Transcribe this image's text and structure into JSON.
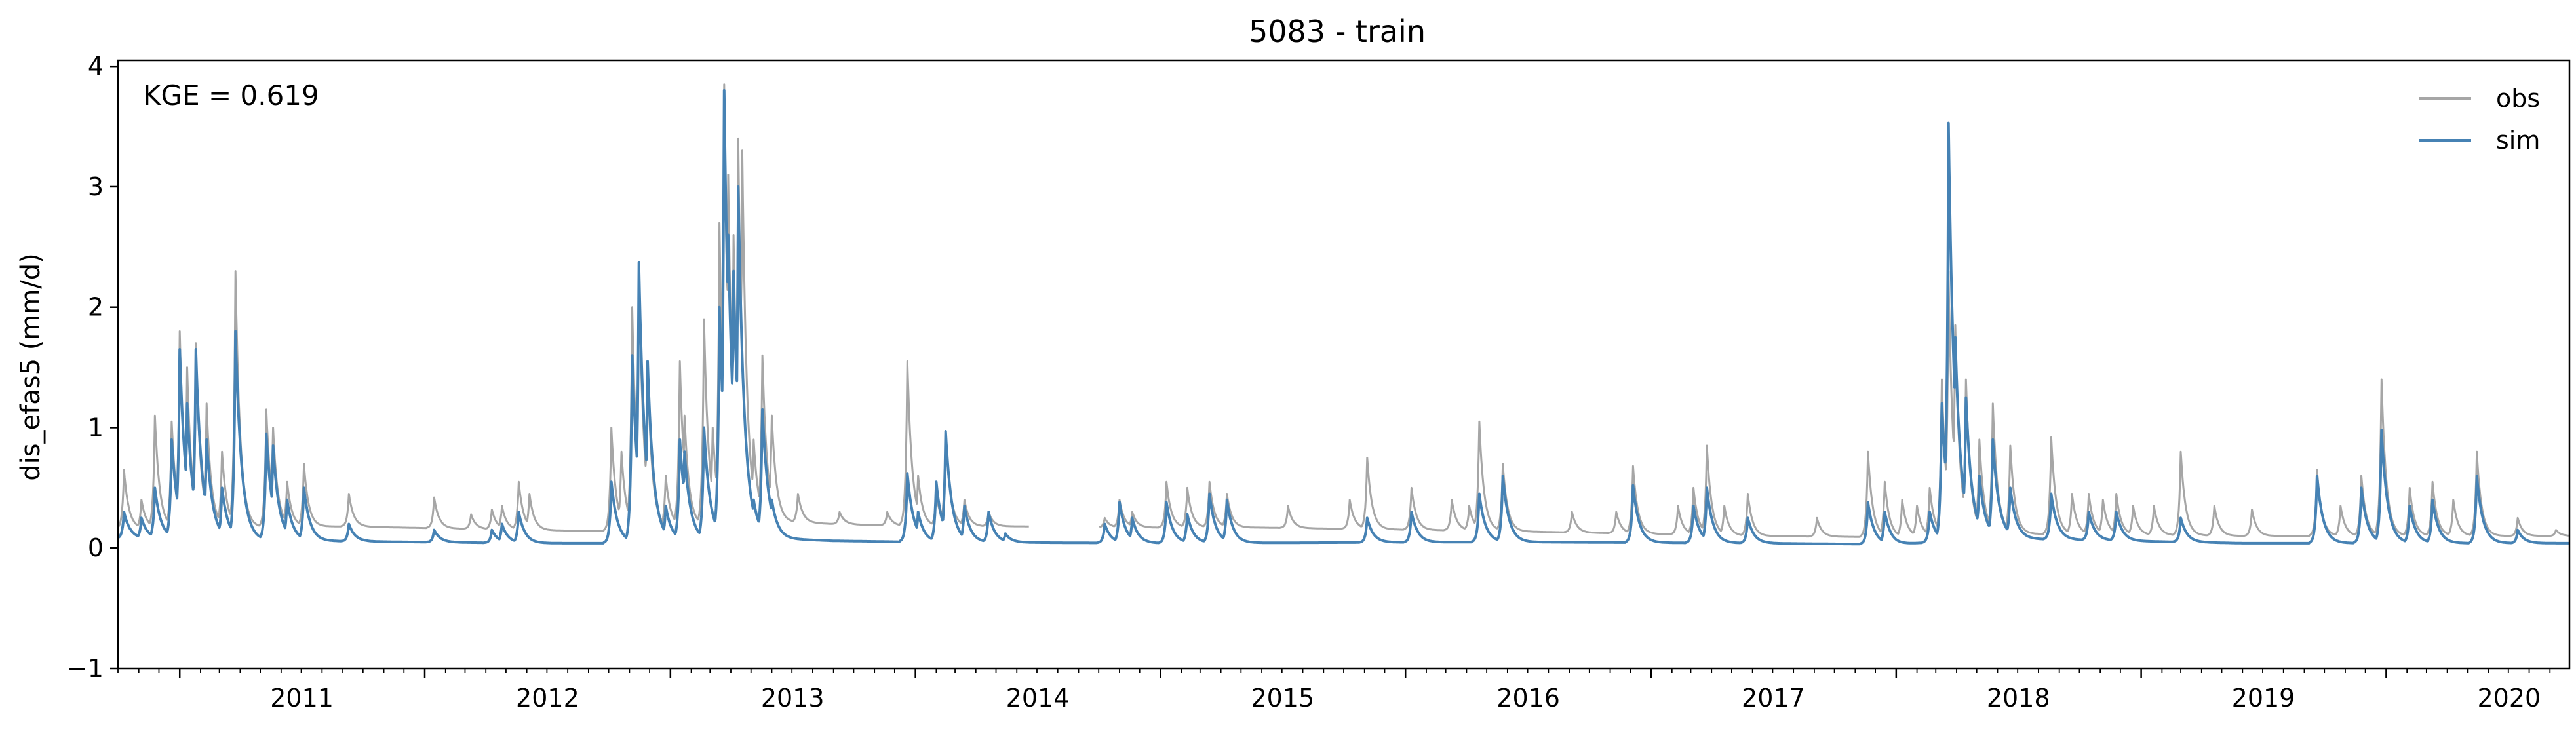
{
  "chart_data": {
    "type": "line",
    "title": "5083 - train",
    "xlabel": "",
    "ylabel": "dis_efas5 (mm/d)",
    "annotation": "KGE = 0.619",
    "x_range": [
      "2010-10-01",
      "2020-09-30"
    ],
    "ylim": [
      -1,
      4.05
    ],
    "y_ticks": [
      -1,
      0,
      1,
      2,
      3,
      4
    ],
    "x_ticks": [
      "2011",
      "2012",
      "2013",
      "2014",
      "2015",
      "2016",
      "2017",
      "2018",
      "2019",
      "2020"
    ],
    "grid": false,
    "legend_position": "top-right",
    "colors": {
      "obs": "#a6a6a6",
      "sim": "#4682b4"
    },
    "series": [
      {
        "name": "obs",
        "baseline": [
          [
            "2010-10-01",
            0.16
          ],
          [
            "2011-09-01",
            0.18
          ],
          [
            "2012-06-01",
            0.15
          ],
          [
            "2012-10-01",
            0.14
          ],
          [
            "2013-06-01",
            0.22
          ],
          [
            "2013-09-01",
            0.2
          ],
          [
            "2014-01-01",
            0.18
          ],
          [
            "2014-06-15",
            0.18
          ],
          [
            "2014-10-01",
            0.17
          ],
          [
            "2015-06-01",
            0.17
          ],
          [
            "2016-06-01",
            0.14
          ],
          [
            "2017-06-01",
            0.1
          ],
          [
            "2018-01-01",
            0.09
          ],
          [
            "2018-06-01",
            0.12
          ],
          [
            "2019-06-01",
            0.1
          ],
          [
            "2020-09-30",
            0.1
          ]
        ],
        "gaps": [
          [
            "2014-06-20",
            "2014-10-01"
          ]
        ],
        "peaks": [
          [
            "2010-10-10",
            0.65
          ],
          [
            "2010-11-05",
            0.4
          ],
          [
            "2010-11-25",
            1.1
          ],
          [
            "2010-12-20",
            1.05
          ],
          [
            "2011-01-01",
            1.8
          ],
          [
            "2011-01-12",
            1.5
          ],
          [
            "2011-01-25",
            1.7
          ],
          [
            "2011-02-10",
            1.2
          ],
          [
            "2011-03-05",
            0.8
          ],
          [
            "2011-03-25",
            2.3
          ],
          [
            "2011-04-15",
            0.25
          ],
          [
            "2011-05-10",
            1.15
          ],
          [
            "2011-05-20",
            1.0
          ],
          [
            "2011-06-10",
            0.55
          ],
          [
            "2011-07-05",
            0.7
          ],
          [
            "2011-09-10",
            0.45
          ],
          [
            "2012-01-15",
            0.42
          ],
          [
            "2012-03-10",
            0.28
          ],
          [
            "2012-04-10",
            0.32
          ],
          [
            "2012-04-25",
            0.35
          ],
          [
            "2012-05-20",
            0.55
          ],
          [
            "2012-06-05",
            0.45
          ],
          [
            "2012-10-05",
            1.0
          ],
          [
            "2012-10-20",
            0.8
          ],
          [
            "2012-11-05",
            2.0
          ],
          [
            "2012-11-15",
            2.35
          ],
          [
            "2012-11-28",
            1.5
          ],
          [
            "2012-12-25",
            0.6
          ],
          [
            "2013-01-15",
            1.55
          ],
          [
            "2013-01-22",
            1.1
          ],
          [
            "2013-02-20",
            1.9
          ],
          [
            "2013-03-05",
            1.0
          ],
          [
            "2013-03-15",
            2.7
          ],
          [
            "2013-03-22",
            3.85
          ],
          [
            "2013-03-28",
            3.1
          ],
          [
            "2013-04-05",
            2.6
          ],
          [
            "2013-04-12",
            3.4
          ],
          [
            "2013-04-18",
            3.3
          ],
          [
            "2013-05-05",
            0.9
          ],
          [
            "2013-05-18",
            1.6
          ],
          [
            "2013-06-01",
            1.1
          ],
          [
            "2013-07-10",
            0.45
          ],
          [
            "2013-09-10",
            0.3
          ],
          [
            "2013-11-20",
            0.3
          ],
          [
            "2013-12-20",
            1.55
          ],
          [
            "2014-01-05",
            0.6
          ],
          [
            "2014-02-01",
            0.45
          ],
          [
            "2014-02-15",
            0.95
          ],
          [
            "2014-03-15",
            0.4
          ],
          [
            "2014-04-20",
            0.3
          ],
          [
            "2014-10-10",
            0.25
          ],
          [
            "2014-11-01",
            0.4
          ],
          [
            "2014-11-20",
            0.3
          ],
          [
            "2015-01-10",
            0.55
          ],
          [
            "2015-02-10",
            0.5
          ],
          [
            "2015-03-15",
            0.55
          ],
          [
            "2015-04-10",
            0.45
          ],
          [
            "2015-07-10",
            0.35
          ],
          [
            "2015-10-10",
            0.4
          ],
          [
            "2015-11-05",
            0.75
          ],
          [
            "2016-01-10",
            0.5
          ],
          [
            "2016-03-10",
            0.4
          ],
          [
            "2016-04-05",
            0.35
          ],
          [
            "2016-04-20",
            1.05
          ],
          [
            "2016-05-25",
            0.7
          ],
          [
            "2016-09-05",
            0.3
          ],
          [
            "2016-11-10",
            0.3
          ],
          [
            "2016-12-05",
            0.68
          ],
          [
            "2017-02-10",
            0.35
          ],
          [
            "2017-03-05",
            0.5
          ],
          [
            "2017-03-25",
            0.85
          ],
          [
            "2017-04-20",
            0.35
          ],
          [
            "2017-05-25",
            0.45
          ],
          [
            "2017-09-05",
            0.25
          ],
          [
            "2017-11-20",
            0.8
          ],
          [
            "2017-12-15",
            0.55
          ],
          [
            "2018-01-10",
            0.4
          ],
          [
            "2018-02-01",
            0.35
          ],
          [
            "2018-02-20",
            0.5
          ],
          [
            "2018-03-10",
            1.4
          ],
          [
            "2018-03-20",
            2.3
          ],
          [
            "2018-03-30",
            1.85
          ],
          [
            "2018-04-15",
            1.4
          ],
          [
            "2018-05-05",
            0.9
          ],
          [
            "2018-05-25",
            1.2
          ],
          [
            "2018-06-20",
            0.85
          ],
          [
            "2018-08-20",
            0.92
          ],
          [
            "2018-09-20",
            0.45
          ],
          [
            "2018-10-15",
            0.45
          ],
          [
            "2018-11-05",
            0.4
          ],
          [
            "2018-11-25",
            0.45
          ],
          [
            "2018-12-20",
            0.35
          ],
          [
            "2019-01-20",
            0.35
          ],
          [
            "2019-03-01",
            0.8
          ],
          [
            "2019-04-20",
            0.35
          ],
          [
            "2019-06-15",
            0.32
          ],
          [
            "2019-09-20",
            0.65
          ],
          [
            "2019-10-25",
            0.35
          ],
          [
            "2019-11-25",
            0.6
          ],
          [
            "2019-12-25",
            1.4
          ],
          [
            "2020-02-05",
            0.5
          ],
          [
            "2020-03-10",
            0.55
          ],
          [
            "2020-04-10",
            0.4
          ],
          [
            "2020-05-15",
            0.8
          ],
          [
            "2020-07-15",
            0.25
          ],
          [
            "2020-09-10",
            0.15
          ]
        ]
      },
      {
        "name": "sim",
        "baseline": [
          [
            "2010-10-01",
            0.08
          ],
          [
            "2011-07-01",
            0.06
          ],
          [
            "2012-06-01",
            0.04
          ],
          [
            "2012-10-01",
            0.04
          ],
          [
            "2013-06-01",
            0.08
          ],
          [
            "2013-09-01",
            0.06
          ],
          [
            "2014-01-01",
            0.05
          ],
          [
            "2015-01-01",
            0.04
          ],
          [
            "2016-06-01",
            0.05
          ],
          [
            "2017-06-01",
            0.04
          ],
          [
            "2018-01-01",
            0.03
          ],
          [
            "2018-06-01",
            0.08
          ],
          [
            "2019-06-01",
            0.04
          ],
          [
            "2020-09-30",
            0.04
          ]
        ],
        "gaps": [],
        "peaks": [
          [
            "2010-10-10",
            0.3
          ],
          [
            "2010-11-05",
            0.25
          ],
          [
            "2010-11-25",
            0.5
          ],
          [
            "2010-12-20",
            0.9
          ],
          [
            "2011-01-01",
            1.65
          ],
          [
            "2011-01-12",
            1.2
          ],
          [
            "2011-01-25",
            1.65
          ],
          [
            "2011-02-10",
            0.9
          ],
          [
            "2011-03-05",
            0.5
          ],
          [
            "2011-03-25",
            1.8
          ],
          [
            "2011-05-10",
            0.95
          ],
          [
            "2011-05-20",
            0.85
          ],
          [
            "2011-06-10",
            0.4
          ],
          [
            "2011-07-05",
            0.5
          ],
          [
            "2011-09-10",
            0.2
          ],
          [
            "2012-01-15",
            0.15
          ],
          [
            "2012-04-10",
            0.15
          ],
          [
            "2012-04-25",
            0.2
          ],
          [
            "2012-05-20",
            0.3
          ],
          [
            "2012-10-05",
            0.55
          ],
          [
            "2012-11-05",
            1.6
          ],
          [
            "2012-11-15",
            2.37
          ],
          [
            "2012-11-28",
            1.55
          ],
          [
            "2012-12-25",
            0.35
          ],
          [
            "2013-01-15",
            0.9
          ],
          [
            "2013-01-22",
            0.8
          ],
          [
            "2013-02-20",
            1.0
          ],
          [
            "2013-03-15",
            2.0
          ],
          [
            "2013-03-22",
            3.8
          ],
          [
            "2013-03-28",
            2.6
          ],
          [
            "2013-04-05",
            2.3
          ],
          [
            "2013-04-12",
            3.0
          ],
          [
            "2013-05-05",
            0.4
          ],
          [
            "2013-05-18",
            1.15
          ],
          [
            "2013-06-01",
            0.4
          ],
          [
            "2013-12-20",
            0.62
          ],
          [
            "2014-01-05",
            0.3
          ],
          [
            "2014-02-01",
            0.55
          ],
          [
            "2014-02-15",
            0.97
          ],
          [
            "2014-03-15",
            0.35
          ],
          [
            "2014-04-20",
            0.3
          ],
          [
            "2014-05-15",
            0.12
          ],
          [
            "2014-10-10",
            0.2
          ],
          [
            "2014-11-01",
            0.38
          ],
          [
            "2014-11-20",
            0.25
          ],
          [
            "2015-01-10",
            0.38
          ],
          [
            "2015-02-10",
            0.28
          ],
          [
            "2015-03-15",
            0.45
          ],
          [
            "2015-04-10",
            0.4
          ],
          [
            "2015-11-05",
            0.25
          ],
          [
            "2016-01-10",
            0.3
          ],
          [
            "2016-04-20",
            0.45
          ],
          [
            "2016-05-25",
            0.6
          ],
          [
            "2016-12-05",
            0.52
          ],
          [
            "2017-03-05",
            0.35
          ],
          [
            "2017-03-25",
            0.5
          ],
          [
            "2017-05-25",
            0.25
          ],
          [
            "2017-11-20",
            0.38
          ],
          [
            "2017-12-15",
            0.3
          ],
          [
            "2018-02-20",
            0.3
          ],
          [
            "2018-03-10",
            1.2
          ],
          [
            "2018-03-20",
            3.53
          ],
          [
            "2018-03-30",
            1.75
          ],
          [
            "2018-04-15",
            1.25
          ],
          [
            "2018-05-05",
            0.6
          ],
          [
            "2018-05-25",
            0.9
          ],
          [
            "2018-06-20",
            0.5
          ],
          [
            "2018-08-20",
            0.45
          ],
          [
            "2018-10-15",
            0.3
          ],
          [
            "2018-11-25",
            0.3
          ],
          [
            "2019-03-01",
            0.25
          ],
          [
            "2019-09-20",
            0.6
          ],
          [
            "2019-11-25",
            0.5
          ],
          [
            "2019-12-25",
            0.98
          ],
          [
            "2020-02-05",
            0.35
          ],
          [
            "2020-03-10",
            0.4
          ],
          [
            "2020-05-15",
            0.6
          ],
          [
            "2020-07-15",
            0.15
          ]
        ]
      }
    ]
  }
}
